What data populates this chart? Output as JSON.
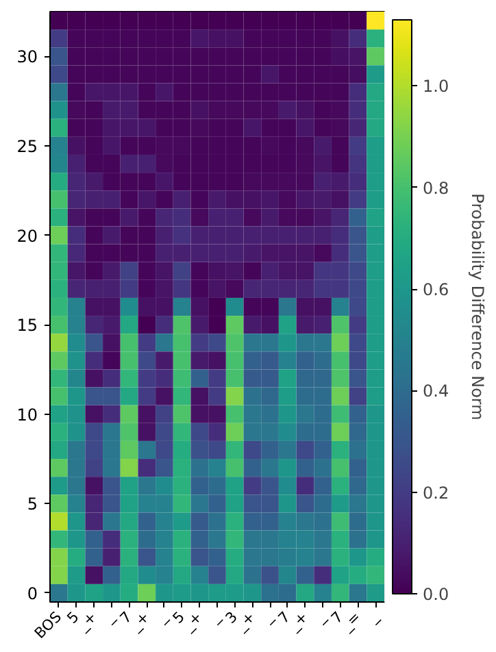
{
  "chart_data": {
    "type": "heatmap",
    "categories": [
      "BOS",
      "5",
      "_+",
      "_",
      "7",
      "_+",
      "_",
      "5",
      "_+",
      "_",
      "3",
      "_+",
      "_",
      "7",
      "_+",
      "_",
      "7",
      "_=",
      "_"
    ],
    "ylim": [
      -0.5,
      32.5
    ],
    "yticks": [
      0,
      5,
      10,
      15,
      20,
      25,
      30
    ],
    "clabel": "Probability Difference Norm",
    "clim": [
      0,
      1.13
    ],
    "cticks": [
      {
        "value": 0,
        "label": "0.0"
      },
      0.2,
      0.4,
      0.6,
      0.8,
      {
        "value": 1,
        "label": "1.0"
      }
    ],
    "cells": [
      [
        0.0,
        0.0,
        0.0,
        0.0,
        0.0,
        0.0,
        0.0,
        0.0,
        0.0,
        0.0,
        0.0,
        0.0,
        0.0,
        0.0,
        0.0,
        0.0,
        0.0,
        0.0,
        1.13
      ],
      [
        0.2,
        0.02,
        0.02,
        0.02,
        0.02,
        0.02,
        0.02,
        0.02,
        0.07,
        0.05,
        0.05,
        0.02,
        0.02,
        0.02,
        0.02,
        0.02,
        0.05,
        0.15,
        0.72
      ],
      [
        0.3,
        0.02,
        0.02,
        0.02,
        0.02,
        0.02,
        0.02,
        0.02,
        0.02,
        0.02,
        0.02,
        0.02,
        0.02,
        0.02,
        0.02,
        0.02,
        0.04,
        0.06,
        0.85
      ],
      [
        0.25,
        0.02,
        0.02,
        0.02,
        0.02,
        0.02,
        0.02,
        0.02,
        0.02,
        0.02,
        0.02,
        0.02,
        0.07,
        0.02,
        0.02,
        0.02,
        0.02,
        0.04,
        0.62
      ],
      [
        0.45,
        0.02,
        0.07,
        0.07,
        0.07,
        0.02,
        0.07,
        0.02,
        0.02,
        0.02,
        0.02,
        0.02,
        0.02,
        0.02,
        0.02,
        0.02,
        0.02,
        0.15,
        0.68
      ],
      [
        0.58,
        0.03,
        0.02,
        0.08,
        0.08,
        0.02,
        0.02,
        0.02,
        0.05,
        0.03,
        0.03,
        0.03,
        0.03,
        0.08,
        0.05,
        0.02,
        0.03,
        0.15,
        0.68
      ],
      [
        0.72,
        0.02,
        0.02,
        0.07,
        0.07,
        0.07,
        0.02,
        0.02,
        0.03,
        0.02,
        0.02,
        0.07,
        0.02,
        0.02,
        0.07,
        0.02,
        0.03,
        0.12,
        0.68
      ],
      [
        0.5,
        0.05,
        0.02,
        0.07,
        0.02,
        0.02,
        0.03,
        0.03,
        0.02,
        0.02,
        0.02,
        0.02,
        0.03,
        0.02,
        0.03,
        0.08,
        0.02,
        0.2,
        0.63
      ],
      [
        0.52,
        0.1,
        0.02,
        0.02,
        0.1,
        0.1,
        0.03,
        0.02,
        0.02,
        0.02,
        0.02,
        0.02,
        0.02,
        0.02,
        0.03,
        0.06,
        0.02,
        0.17,
        0.63
      ],
      [
        0.7,
        0.12,
        0.08,
        0.02,
        0.02,
        0.02,
        0.07,
        0.02,
        0.02,
        0.02,
        0.02,
        0.03,
        0.03,
        0.03,
        0.03,
        0.1,
        0.08,
        0.15,
        0.63
      ],
      [
        0.8,
        0.12,
        0.1,
        0.1,
        0.02,
        0.07,
        0.02,
        0.1,
        0.02,
        0.08,
        0.05,
        0.05,
        0.07,
        0.03,
        0.07,
        0.08,
        0.05,
        0.2,
        0.63
      ],
      [
        0.72,
        0.06,
        0.02,
        0.02,
        0.08,
        0.02,
        0.12,
        0.15,
        0.03,
        0.1,
        0.1,
        0.03,
        0.08,
        0.03,
        0.03,
        0.06,
        0.12,
        0.35,
        0.65
      ],
      [
        0.88,
        0.15,
        0.02,
        0.08,
        0.02,
        0.02,
        0.1,
        0.16,
        0.1,
        0.1,
        0.1,
        0.1,
        0.1,
        0.1,
        0.1,
        0.1,
        0.15,
        0.3,
        0.63
      ],
      [
        0.75,
        0.13,
        0.02,
        0.02,
        0.02,
        0.02,
        0.1,
        0.1,
        0.1,
        0.1,
        0.1,
        0.08,
        0.06,
        0.06,
        0.06,
        0.03,
        0.15,
        0.3,
        0.63
      ],
      [
        0.75,
        0.07,
        0.02,
        0.08,
        0.22,
        0.02,
        0.06,
        0.22,
        0.02,
        0.05,
        0.06,
        0.02,
        0.1,
        0.06,
        0.06,
        0.18,
        0.18,
        0.25,
        0.63
      ],
      [
        0.72,
        0.12,
        0.1,
        0.1,
        0.2,
        0.02,
        0.06,
        0.18,
        0.02,
        0.06,
        0.03,
        0.12,
        0.12,
        0.12,
        0.12,
        0.18,
        0.18,
        0.25,
        0.63
      ],
      [
        0.75,
        0.5,
        0.05,
        0.05,
        0.55,
        0.05,
        0.05,
        0.5,
        0.05,
        0.0,
        0.55,
        0.02,
        0.02,
        0.45,
        0.05,
        0.05,
        0.5,
        0.25,
        0.63
      ],
      [
        0.8,
        0.5,
        0.12,
        0.08,
        0.68,
        0.0,
        0.15,
        0.82,
        0.08,
        0.0,
        0.85,
        0.08,
        0.05,
        0.65,
        0.08,
        0.1,
        0.82,
        0.2,
        0.63
      ],
      [
        0.95,
        0.55,
        0.3,
        0.05,
        0.8,
        0.2,
        0.45,
        0.8,
        0.2,
        0.25,
        0.82,
        0.45,
        0.45,
        0.6,
        0.45,
        0.45,
        0.88,
        0.25,
        0.63
      ],
      [
        0.85,
        0.58,
        0.15,
        0.02,
        0.8,
        0.25,
        0.08,
        0.8,
        0.08,
        0.05,
        0.8,
        0.35,
        0.32,
        0.5,
        0.35,
        0.4,
        0.8,
        0.25,
        0.63
      ],
      [
        0.75,
        0.52,
        0.05,
        0.15,
        0.75,
        0.2,
        0.15,
        0.78,
        0.35,
        0.2,
        0.8,
        0.32,
        0.32,
        0.65,
        0.38,
        0.38,
        0.82,
        0.3,
        0.63
      ],
      [
        0.8,
        0.6,
        0.3,
        0.3,
        0.68,
        0.2,
        0.05,
        0.75,
        0.05,
        0.2,
        0.92,
        0.42,
        0.38,
        0.63,
        0.4,
        0.4,
        0.88,
        0.22,
        0.63
      ],
      [
        0.65,
        0.58,
        0.05,
        0.15,
        0.85,
        0.05,
        0.22,
        0.82,
        0.05,
        0.05,
        0.8,
        0.45,
        0.42,
        0.6,
        0.45,
        0.4,
        0.78,
        0.35,
        0.6
      ],
      [
        0.72,
        0.58,
        0.25,
        0.45,
        0.82,
        0.05,
        0.25,
        0.75,
        0.25,
        0.15,
        0.88,
        0.45,
        0.45,
        0.55,
        0.4,
        0.4,
        0.88,
        0.38,
        0.6
      ],
      [
        0.68,
        0.45,
        0.25,
        0.45,
        0.85,
        0.45,
        0.25,
        0.7,
        0.28,
        0.25,
        0.75,
        0.25,
        0.35,
        0.45,
        0.25,
        0.35,
        0.72,
        0.42,
        0.6
      ],
      [
        0.85,
        0.45,
        0.22,
        0.45,
        0.92,
        0.15,
        0.3,
        0.72,
        0.42,
        0.5,
        0.8,
        0.35,
        0.45,
        0.6,
        0.35,
        0.42,
        0.8,
        0.35,
        0.6
      ],
      [
        0.62,
        0.45,
        0.05,
        0.3,
        0.65,
        0.45,
        0.55,
        0.72,
        0.35,
        0.4,
        0.65,
        0.2,
        0.3,
        0.55,
        0.15,
        0.35,
        0.72,
        0.38,
        0.6
      ],
      [
        0.85,
        0.5,
        0.12,
        0.3,
        0.65,
        0.5,
        0.5,
        0.75,
        0.45,
        0.35,
        0.65,
        0.3,
        0.3,
        0.6,
        0.3,
        0.4,
        0.62,
        0.45,
        0.6
      ],
      [
        1.0,
        0.6,
        0.12,
        0.45,
        0.68,
        0.35,
        0.5,
        0.62,
        0.32,
        0.42,
        0.72,
        0.35,
        0.35,
        0.5,
        0.45,
        0.42,
        0.78,
        0.4,
        0.6
      ],
      [
        0.75,
        0.6,
        0.35,
        0.15,
        0.72,
        0.4,
        0.5,
        0.72,
        0.35,
        0.45,
        0.75,
        0.45,
        0.45,
        0.5,
        0.5,
        0.45,
        0.72,
        0.42,
        0.6
      ],
      [
        0.92,
        0.7,
        0.35,
        0.1,
        0.72,
        0.3,
        0.5,
        0.72,
        0.3,
        0.35,
        0.7,
        0.45,
        0.45,
        0.48,
        0.5,
        0.45,
        0.72,
        0.6,
        0.7
      ],
      [
        0.92,
        0.62,
        0.05,
        0.35,
        0.68,
        0.55,
        0.5,
        0.68,
        0.5,
        0.3,
        0.68,
        0.42,
        0.28,
        0.52,
        0.35,
        0.15,
        0.65,
        0.7,
        0.75
      ],
      [
        0.45,
        0.6,
        0.65,
        0.6,
        0.7,
        0.88,
        0.6,
        0.62,
        0.6,
        0.62,
        0.62,
        0.6,
        0.42,
        0.4,
        0.68,
        0.5,
        0.75,
        0.45,
        0.62
      ]
    ]
  }
}
